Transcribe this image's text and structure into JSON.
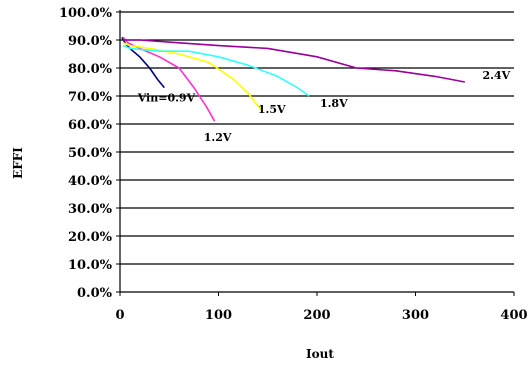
{
  "chart_data": {
    "type": "line",
    "xlabel": "Iout",
    "ylabel": "EFFI",
    "xlim": [
      0,
      400
    ],
    "ylim": [
      0,
      100
    ],
    "x_ticks": [
      0,
      100,
      200,
      300,
      400
    ],
    "x_tick_labels": [
      "0",
      "100",
      "200",
      "300",
      "400"
    ],
    "y_ticks": [
      0,
      10,
      20,
      30,
      40,
      50,
      60,
      70,
      80,
      90,
      100
    ],
    "y_tick_labels": [
      "0.0%",
      "10.0%",
      "20.0%",
      "30.0%",
      "40.0%",
      "50.0%",
      "60.0%",
      "70.0%",
      "80.0%",
      "90.0%",
      "100.0%"
    ],
    "grid": "horizontal",
    "legend": "inline labels",
    "series": [
      {
        "name": "Vin=0.9V",
        "color": "#000080",
        "points": [
          [
            2,
            91
          ],
          [
            5,
            89
          ],
          [
            10,
            87
          ],
          [
            20,
            84
          ],
          [
            30,
            80
          ],
          [
            38,
            76
          ],
          [
            45,
            73
          ]
        ]
      },
      {
        "name": "1.2V",
        "color": "#ff33cc",
        "points": [
          [
            3,
            91
          ],
          [
            8,
            89
          ],
          [
            20,
            87
          ],
          [
            40,
            84
          ],
          [
            60,
            80
          ],
          [
            75,
            73
          ],
          [
            88,
            66
          ],
          [
            96,
            61
          ]
        ]
      },
      {
        "name": "1.5V",
        "color": "#ffff00",
        "points": [
          [
            3,
            89
          ],
          [
            10,
            88
          ],
          [
            30,
            87
          ],
          [
            60,
            85
          ],
          [
            90,
            82
          ],
          [
            115,
            76
          ],
          [
            130,
            71
          ],
          [
            143,
            65
          ]
        ]
      },
      {
        "name": "1.8V",
        "color": "#33ffff",
        "points": [
          [
            3,
            88
          ],
          [
            10,
            87
          ],
          [
            40,
            86
          ],
          [
            70,
            86
          ],
          [
            100,
            84
          ],
          [
            130,
            81
          ],
          [
            160,
            77
          ],
          [
            180,
            73
          ],
          [
            192,
            70
          ]
        ]
      },
      {
        "name": "2.4V",
        "color": "#990099",
        "points": [
          [
            3,
            90
          ],
          [
            20,
            90
          ],
          [
            60,
            89
          ],
          [
            100,
            88
          ],
          [
            150,
            87
          ],
          [
            200,
            84
          ],
          [
            240,
            80
          ],
          [
            280,
            79
          ],
          [
            320,
            77
          ],
          [
            350,
            75
          ]
        ]
      }
    ],
    "series_labels": [
      {
        "text": "Vin=0.9V",
        "x": 18,
        "y": 68
      },
      {
        "text": "1.2V",
        "x": 85,
        "y": 54
      },
      {
        "text": "1.5V",
        "x": 140,
        "y": 64
      },
      {
        "text": "1.8V",
        "x": 203,
        "y": 66
      },
      {
        "text": "2.4V",
        "x": 368,
        "y": 76
      }
    ]
  }
}
